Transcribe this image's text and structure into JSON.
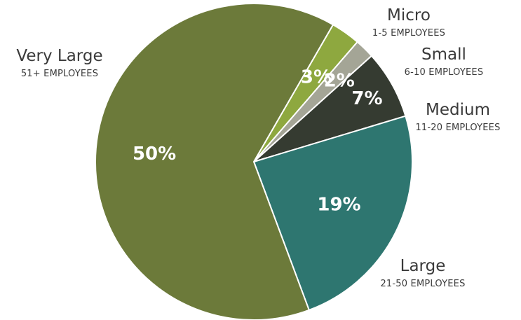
{
  "chart_data": {
    "type": "pie",
    "title": "",
    "slices": [
      {
        "name": "Micro",
        "sublabel": "1-5 EMPLOYEES",
        "label": "3%",
        "value": 3,
        "color": "#8ea83f"
      },
      {
        "name": "Small",
        "sublabel": "6-10 EMPLOYEES",
        "label": "2%",
        "value": 2,
        "color": "#a4a596"
      },
      {
        "name": "Medium",
        "sublabel": "11-20 EMPLOYEES",
        "label": "7%",
        "value": 7,
        "color": "#353b31"
      },
      {
        "name": "Large",
        "sublabel": "21-50 EMPLOYEES",
        "label": "19%",
        "value": 19,
        "color": "#2e7670"
      },
      {
        "name": "Very Large",
        "sublabel": "51+ EMPLOYEES",
        "label": "50%",
        "value": 50,
        "color": "#6c7a3a"
      }
    ],
    "start_angle_deg": 30,
    "direction": "clockwise"
  }
}
